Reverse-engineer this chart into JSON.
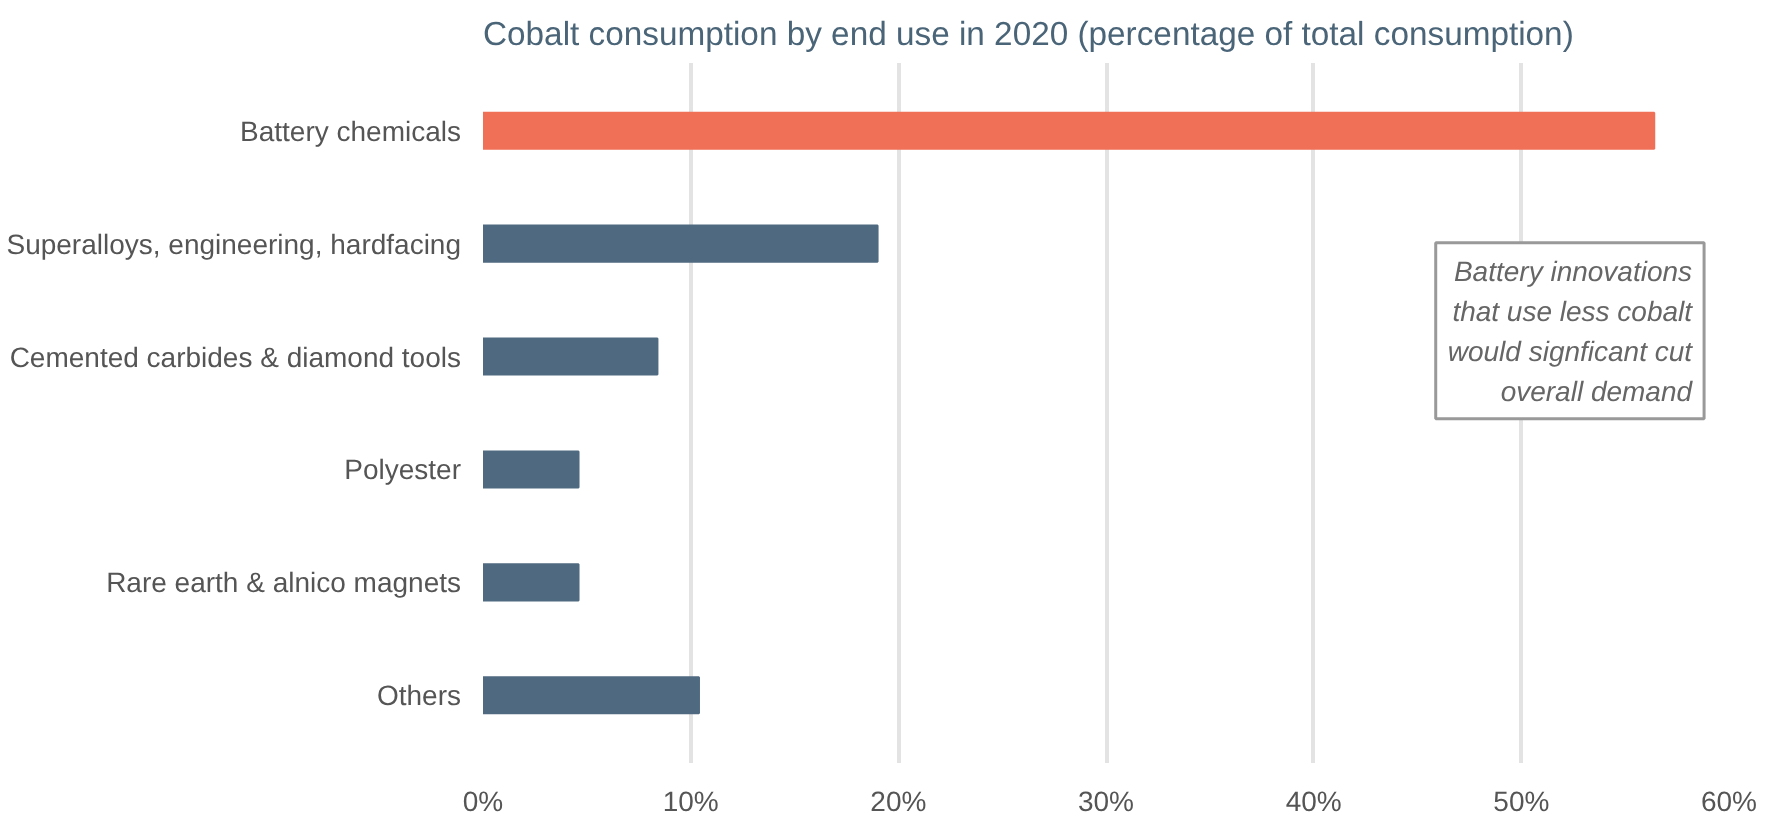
{
  "chart_data": {
    "type": "bar",
    "orientation": "horizontal",
    "title": "Cobalt consumption by end use in 2020 (percentage of total consumption)",
    "categories": [
      "Battery chemicals",
      "Superalloys, engineering, hardfacing",
      "Cemented carbides & diamond tools",
      "Polyester",
      "Rare earth & alnico magnets",
      "Others"
    ],
    "values": [
      56.4,
      19.0,
      8.4,
      4.6,
      4.6,
      10.4
    ],
    "colors": [
      "#f07057",
      "#4f6a80",
      "#4f6a80",
      "#4f6a80",
      "#4f6a80",
      "#4f6a80"
    ],
    "xlim": [
      0,
      60
    ],
    "xticks": [
      {
        "value": 0,
        "label": "0%"
      },
      {
        "value": 10,
        "label": "10%"
      },
      {
        "value": 20,
        "label": "20%"
      },
      {
        "value": 30,
        "label": "30%"
      },
      {
        "value": 40,
        "label": "40%"
      },
      {
        "value": 50,
        "label": "50%"
      },
      {
        "value": 60,
        "label": "60%"
      }
    ],
    "grid": "x",
    "annotations": [
      "Battery innovations\nthat use less cobalt\nwould signficant cut\noverall demand"
    ]
  }
}
